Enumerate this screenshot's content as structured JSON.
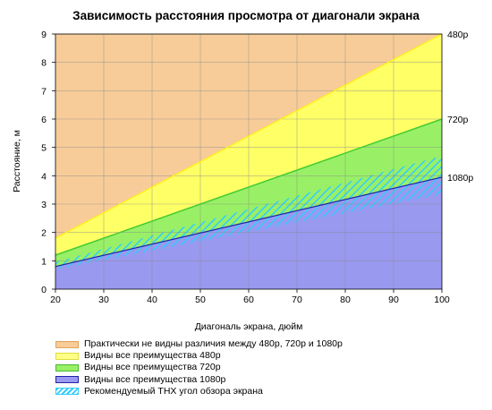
{
  "chart_data": {
    "type": "area",
    "title": "Зависимость расстояния просмотра от диагонали экрана",
    "xlabel": "Диагональ экрана, дюйм",
    "ylabel": "Расстояние, м",
    "xlim": [
      20,
      100
    ],
    "ylim": [
      0,
      9
    ],
    "x_ticks": [
      "20",
      "30",
      "40",
      "50",
      "60",
      "70",
      "80",
      "90",
      "100"
    ],
    "y_ticks": [
      "0",
      "1",
      "2",
      "3",
      "4",
      "5",
      "6",
      "7",
      "8",
      "9"
    ],
    "grid": true,
    "series": [
      {
        "name": "480p",
        "color": "#ffff66",
        "line_color": "#ffee22",
        "points": [
          [
            20,
            1.8
          ],
          [
            100,
            9.0
          ]
        ]
      },
      {
        "name": "720p",
        "color": "#99f066",
        "line_color": "#44cc33",
        "points": [
          [
            20,
            1.2
          ],
          [
            100,
            6.0
          ]
        ]
      },
      {
        "name": "1080p",
        "color": "#9999f0",
        "line_color": "#2222aa",
        "points": [
          [
            20,
            0.8
          ],
          [
            100,
            3.95
          ]
        ]
      }
    ],
    "thx_band": {
      "color": "#33ccff",
      "upper": [
        [
          20,
          0.95
        ],
        [
          100,
          4.7
        ]
      ],
      "lower": [
        [
          20,
          0.7
        ],
        [
          100,
          3.35
        ]
      ]
    },
    "top_region_color": "#f7cc99",
    "legend": {
      "placement": "bottom",
      "entries": [
        {
          "label": "Практически не видны различия между 480p, 720p и 1080p",
          "fill": "#f7cc99",
          "border": "#e3a35a"
        },
        {
          "label": "Видны все преимущества 480p",
          "fill": "#ffff88",
          "border": "#dede3c"
        },
        {
          "label": "Видны все преимущества 720p",
          "fill": "#99f066",
          "border": "#44bb33"
        },
        {
          "label": "Видны все преимущества 1080p",
          "fill": "#9999f0",
          "border": "#2222aa"
        },
        {
          "label": "Рекомендуемый THX угол обзора экрана",
          "fill": "hatch",
          "border": "#33ccff"
        }
      ]
    }
  }
}
